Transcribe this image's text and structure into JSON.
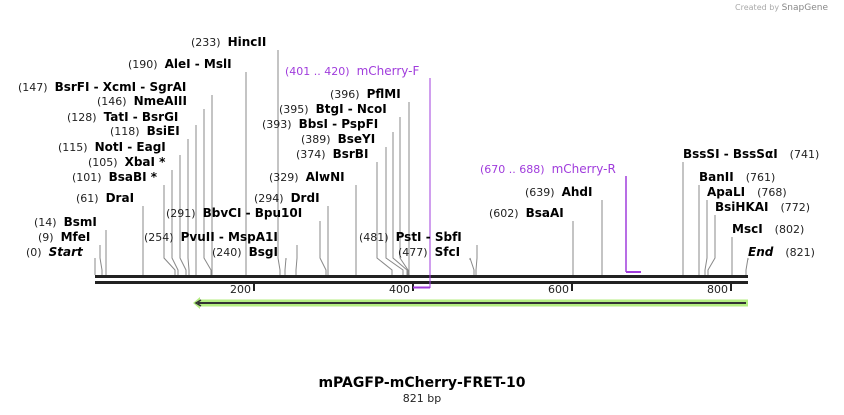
{
  "credit": {
    "prefix": "Created by",
    "brand": "SnapGene"
  },
  "sequence": {
    "name": "mPAGFP-mCherry-FRET-10",
    "length_label": "821 bp",
    "length": 821
  },
  "ruler": {
    "ticks": [
      "200",
      "400",
      "600",
      "800"
    ]
  },
  "colors": {
    "primer": "#a03cdc",
    "feature": "#b4ee82",
    "backbone": "#222222"
  },
  "features": [
    {
      "pos": "(233)",
      "label": "HincII"
    },
    {
      "pos": "(190)",
      "label": "AleI  - MslI"
    },
    {
      "pos": "(147)",
      "label": "BsrFI  - XcmI  - SgrAI"
    },
    {
      "pos": "(146)",
      "label": "NmeAIII"
    },
    {
      "pos": "(128)",
      "label": "TatI  - BsrGI"
    },
    {
      "pos": "(118)",
      "label": "BsiEI"
    },
    {
      "pos": "(115)",
      "label": "NotI  - EagI"
    },
    {
      "pos": "(105)",
      "label": "XbaI *"
    },
    {
      "pos": "(101)",
      "label": "BsaBI *"
    },
    {
      "pos": "(61)",
      "label": "DraI"
    },
    {
      "pos": "(291)",
      "label": "BbvCI  - Bpu10I"
    },
    {
      "pos": "(14)",
      "label": "BsmI"
    },
    {
      "pos": "(254)",
      "label": "PvuII  - MspA1I"
    },
    {
      "pos": "(9)",
      "label": "MfeI"
    },
    {
      "pos": "(0)",
      "label": "Start"
    },
    {
      "pos": "(240)",
      "label": "BsgI"
    },
    {
      "pos": "(294)",
      "label": "DrdI"
    },
    {
      "pos": "(329)",
      "label": "AlwNI"
    },
    {
      "pos": "(374)",
      "label": "BsrBI"
    },
    {
      "pos": "(389)",
      "label": "BseYI"
    },
    {
      "pos": "(393)",
      "label": "BbsI  - PspFI"
    },
    {
      "pos": "(395)",
      "label": "BtgI  - NcoI"
    },
    {
      "pos": "(396)",
      "label": "PflMI"
    },
    {
      "pos": "(401 .. 420)",
      "label": "mCherry-F"
    },
    {
      "pos": "(481)",
      "label": "PstI  - SbfI"
    },
    {
      "pos": "(477)",
      "label": "SfcI"
    },
    {
      "pos": "(602)",
      "label": "BsaAI"
    },
    {
      "pos": "(639)",
      "label": "AhdI"
    },
    {
      "pos": "(670 .. 688)",
      "label": "mCherry-R"
    },
    {
      "pos": "(741)",
      "label": "BssSI  - BssSαI"
    },
    {
      "pos": "(761)",
      "label": "BanII"
    },
    {
      "pos": "(768)",
      "label": "ApaLI"
    },
    {
      "pos": "(772)",
      "label": "BsiHKAI"
    },
    {
      "pos": "(802)",
      "label": "MscI"
    },
    {
      "pos": "(821)",
      "label": "End"
    }
  ]
}
